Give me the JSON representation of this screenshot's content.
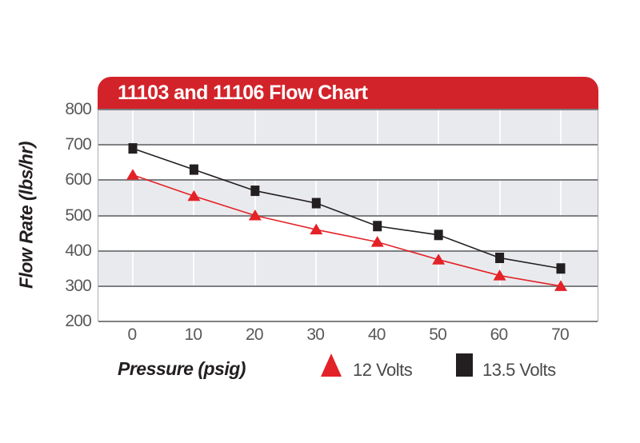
{
  "page": {
    "background": "#FFFFFF"
  },
  "header": {
    "background": "#D2232A",
    "text_color": "#FFFFFF"
  },
  "chart_data": {
    "type": "line",
    "title": "11103 and 11106 Flow Chart",
    "xlabel": "Pressure (psig)",
    "ylabel": "Flow Rate (lbs/hr)",
    "x": [
      0,
      10,
      20,
      30,
      40,
      50,
      60,
      70
    ],
    "xticks": [
      0,
      10,
      20,
      30,
      40,
      50,
      60,
      70
    ],
    "yticks": [
      200,
      300,
      400,
      500,
      600,
      700,
      800
    ],
    "ylim": [
      200,
      800
    ],
    "series": [
      {
        "name": "12 Volts",
        "marker": "triangle",
        "color": "#E32227",
        "values": [
          615,
          555,
          500,
          460,
          425,
          375,
          330,
          300
        ]
      },
      {
        "name": "13.5 Volts",
        "marker": "square",
        "color": "#231F20",
        "values": [
          690,
          630,
          570,
          535,
          470,
          445,
          380,
          350
        ]
      }
    ],
    "grid": "horizontal-bands",
    "band_colors": [
      "#E9EAEE",
      "#FFFFFF"
    ],
    "gridline_color": "#7E8083",
    "tick_label_color": "#58595B",
    "legend_position": "bottom"
  }
}
